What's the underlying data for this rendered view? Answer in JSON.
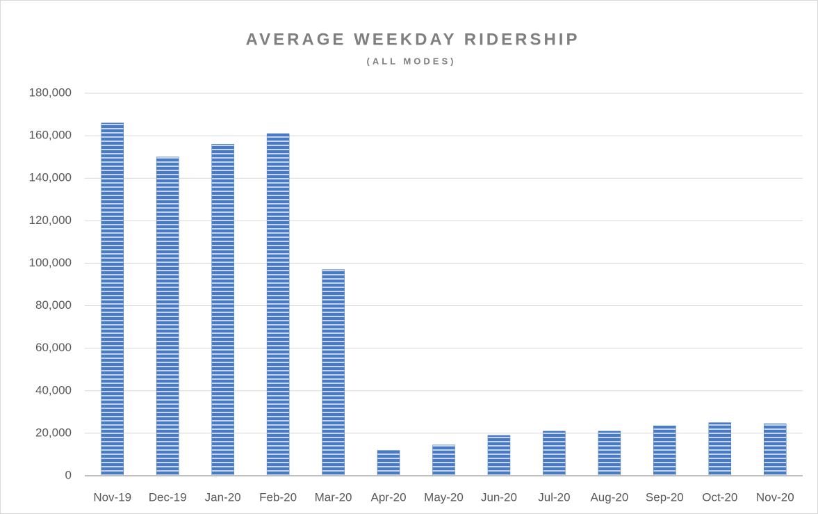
{
  "chart_data": {
    "type": "bar",
    "title": "AVERAGE WEEKDAY RIDERSHIP",
    "subtitle": "(ALL MODES)",
    "categories": [
      "Nov-19",
      "Dec-19",
      "Jan-20",
      "Feb-20",
      "Mar-20",
      "Apr-20",
      "May-20",
      "Jun-20",
      "Jul-20",
      "Aug-20",
      "Sep-20",
      "Oct-20",
      "Nov-20"
    ],
    "values": [
      166000,
      150000,
      156000,
      161000,
      97000,
      12000,
      14500,
      19000,
      21000,
      21000,
      23500,
      25000,
      24500
    ],
    "color": "#4a7bc0",
    "ylim": [
      0,
      180000
    ],
    "yticks": [
      0,
      {
        "value": 20000,
        "label": "20,000"
      },
      {
        "value": 40000,
        "label": "40,000"
      },
      {
        "value": 60000,
        "label": "60,000"
      },
      {
        "value": 80000,
        "label": "80,000"
      },
      {
        "value": 100000,
        "label": "100,000"
      },
      {
        "value": 120000,
        "label": "120,000"
      },
      {
        "value": 140000,
        "label": "140,000"
      },
      {
        "value": 160000,
        "label": "160,000"
      },
      {
        "value": 180000,
        "label": "180,000"
      }
    ],
    "grid": true
  }
}
